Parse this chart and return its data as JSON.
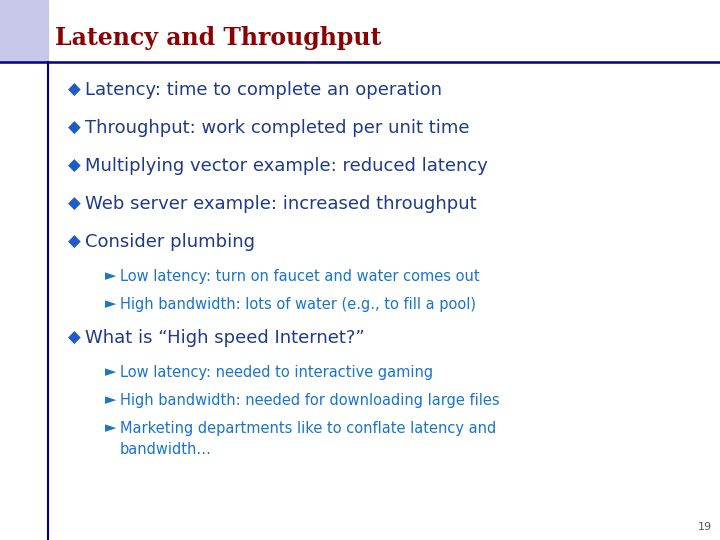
{
  "title": "Latency and Throughput",
  "title_color": "#8B0000",
  "title_fontsize": 17,
  "background_color": "#FFFFFF",
  "header_square_color": "#C8C8E8",
  "left_line_color": "#00008B",
  "separator_color": "#00008B",
  "bullet_color": "#1E5BC6",
  "bullet_char": "◆",
  "sub_bullet_char": "►",
  "main_text_color": "#1E3A8A",
  "sub_text_color": "#1874CD",
  "main_fontsize": 13,
  "sub_fontsize": 10.5,
  "page_number": "19",
  "main_bullets": [
    "Latency: time to complete an operation",
    "Throughput: work completed per unit time",
    "Multiplying vector example: reduced latency",
    "Web server example: increased throughput",
    "Consider plumbing"
  ],
  "consider_plumbing_subs": [
    "Low latency: turn on faucet and water comes out",
    "High bandwidth: lots of water (e.g., to fill a pool)"
  ],
  "what_is_bullet": "What is “High speed Internet?”",
  "what_is_subs": [
    "Low latency: needed to interactive gaming",
    "High bandwidth: needed for downloading large files",
    "Marketing departments like to conflate latency and\nbandwidth…"
  ]
}
